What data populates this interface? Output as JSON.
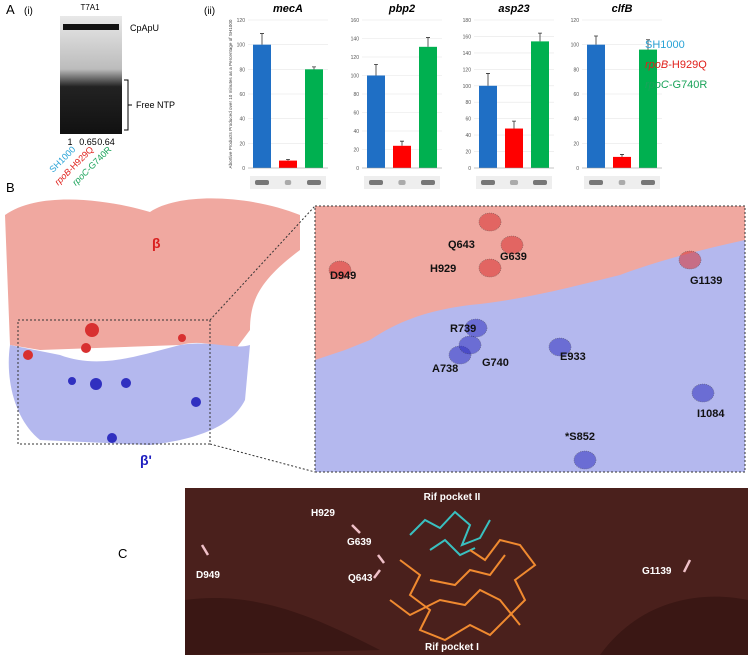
{
  "panel_a": {
    "label": "A",
    "sub": "(i)",
    "promoter": "T7A1",
    "band_top": "CpApU",
    "band_bottom": "Free NTP",
    "ratios": [
      1,
      0.65,
      0.64
    ]
  },
  "panel_ii_label": "(ii)",
  "strains": [
    {
      "plain": "SH1000",
      "color": "#29a3d6"
    },
    {
      "italic": "rpoB",
      "plain": "-H929Q",
      "color": "#e0201b"
    },
    {
      "italic": "rpoC",
      "plain": "-G740R",
      "color": "#1aa35a"
    }
  ],
  "chart_data": [
    {
      "type": "bar",
      "title": "mecA",
      "y_label": "Abortive Products Produced over 10 minutes as a Percentage of SH1000",
      "values": [
        100,
        6,
        80
      ],
      "errors": [
        9,
        1,
        2
      ],
      "colors": [
        "#1f6fc5",
        "#ff0000",
        "#00b050"
      ],
      "ylim": [
        0,
        120
      ],
      "yticks": [
        0,
        20,
        40,
        60,
        80,
        100,
        120
      ]
    },
    {
      "type": "bar",
      "title": "pbp2",
      "values": [
        100,
        24,
        131
      ],
      "errors": [
        12,
        5,
        10
      ],
      "colors": [
        "#1f6fc5",
        "#ff0000",
        "#00b050"
      ],
      "ylim": [
        0,
        160
      ],
      "yticks": [
        0,
        20,
        40,
        60,
        80,
        100,
        120,
        140,
        160
      ]
    },
    {
      "type": "bar",
      "title": "asp23",
      "values": [
        100,
        48,
        154
      ],
      "errors": [
        15,
        9,
        10
      ],
      "colors": [
        "#1f6fc5",
        "#ff0000",
        "#00b050"
      ],
      "ylim": [
        0,
        180
      ],
      "yticks": [
        0,
        20,
        40,
        60,
        80,
        100,
        120,
        140,
        160,
        180
      ]
    },
    {
      "type": "bar",
      "title": "clfB",
      "values": [
        100,
        9,
        96
      ],
      "errors": [
        7,
        2,
        8
      ],
      "colors": [
        "#1f6fc5",
        "#ff0000",
        "#00b050"
      ],
      "ylim": [
        0,
        120
      ],
      "yticks": [
        0,
        20,
        40,
        60,
        80,
        100,
        120
      ]
    }
  ],
  "panel_b": {
    "label": "B",
    "beta": "β",
    "beta_prime": "β'",
    "residues": [
      "D949",
      "Q643",
      "G639",
      "H929",
      "G1139",
      "R739",
      "A738",
      "G740",
      "E933",
      "I1084",
      "*S852"
    ]
  },
  "panel_c": {
    "label": "C",
    "residues": [
      "H929",
      "G639",
      "Q643",
      "D949",
      "G1139"
    ],
    "pockets": [
      "Rif pocket II",
      "Rif pocket I"
    ]
  }
}
